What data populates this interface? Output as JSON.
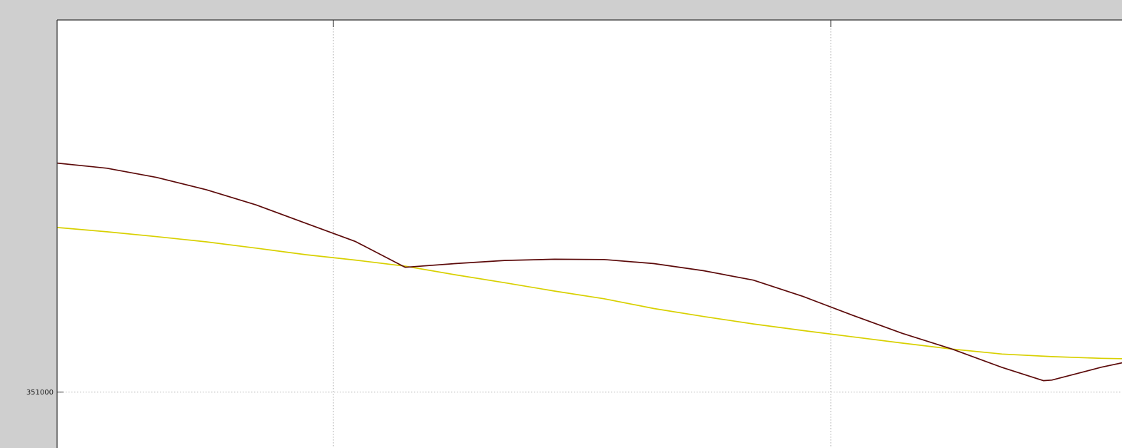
{
  "colors": {
    "background": "#cfcfcf",
    "plot_background": "#ffffff",
    "axis": "#333333",
    "grid": "#b0b0b0"
  },
  "chart_data": {
    "type": "line",
    "title": "",
    "xlabel": "",
    "ylabel": "",
    "grid": true,
    "xlim": [
      0,
      22
    ],
    "ylim": [
      350700,
      352300
    ],
    "y_ticks": [
      {
        "value": 351000,
        "label": "351000"
      }
    ],
    "x_gridlines": [
      5.556,
      15.556
    ],
    "series": [
      {
        "color": "#5c0a0a",
        "x": [
          0,
          1,
          2,
          3,
          4,
          5,
          6,
          7,
          8,
          9,
          10,
          11,
          12,
          13,
          14,
          15,
          16,
          17,
          18,
          19,
          19.83,
          20,
          21,
          22
        ],
        "y": [
          351800,
          351782,
          351750,
          351707,
          351654,
          351590,
          351526,
          351436,
          351449,
          351460,
          351464,
          351463,
          351449,
          351424,
          351391,
          351334,
          351268,
          351205,
          351150,
          351086,
          351040,
          351042,
          351087,
          351124
        ]
      },
      {
        "color": "#d8d000",
        "x": [
          0,
          1,
          2,
          3,
          4,
          5,
          6,
          7,
          8,
          9,
          10,
          11,
          12,
          13,
          14,
          15,
          16,
          17,
          18,
          19,
          20,
          21,
          22
        ],
        "y": [
          351575,
          351560,
          351543,
          351525,
          351503,
          351480,
          351461,
          351440,
          351410,
          351382,
          351353,
          351326,
          351292,
          351264,
          351238,
          351215,
          351193,
          351171,
          351150,
          351133,
          351124,
          351118,
          351115
        ]
      }
    ]
  }
}
